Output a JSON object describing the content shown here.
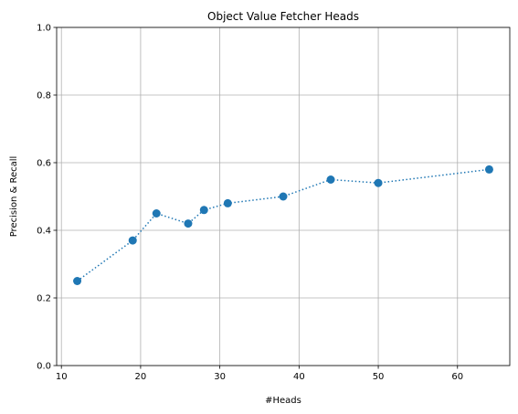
{
  "chart_data": {
    "type": "line",
    "title": "Object Value Fetcher Heads",
    "xlabel": "#Heads",
    "ylabel": "Precision & Recall",
    "xlim": [
      9.4,
      66.6
    ],
    "ylim": [
      0.0,
      1.0
    ],
    "x_ticks": [
      10,
      20,
      30,
      40,
      50,
      60
    ],
    "y_ticks": [
      0.0,
      0.2,
      0.4,
      0.6,
      0.8,
      1.0
    ],
    "x_tick_labels": [
      "10",
      "20",
      "30",
      "40",
      "50",
      "60"
    ],
    "y_tick_labels": [
      "0.0",
      "0.2",
      "0.4",
      "0.6",
      "0.8",
      "1.0"
    ],
    "grid": true,
    "line_style": "dotted",
    "marker": "circle",
    "color": "#1f77b4",
    "series": [
      {
        "x": [
          12,
          19,
          22,
          26,
          28,
          31,
          38,
          44,
          50,
          64
        ],
        "y": [
          0.25,
          0.37,
          0.45,
          0.42,
          0.46,
          0.48,
          0.5,
          0.55,
          0.54,
          0.58
        ]
      }
    ]
  }
}
